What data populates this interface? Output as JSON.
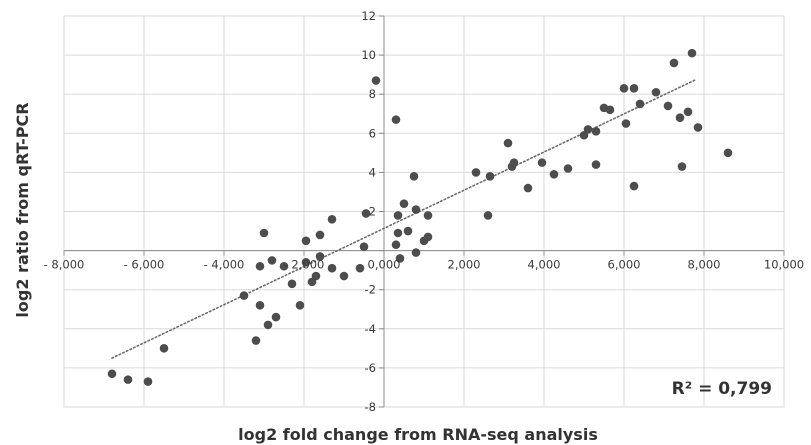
{
  "chart_data": {
    "type": "scatter",
    "xlabel": "log2 fold change from RNA-seq analysis",
    "ylabel": "log2 ratio from qRT-PCR",
    "xlim": [
      -8000,
      10000
    ],
    "ylim": [
      -8,
      12
    ],
    "x_ticks": [
      -8000,
      -6000,
      -4000,
      -2000,
      0,
      2000,
      4000,
      6000,
      8000,
      10000
    ],
    "x_tick_labels": [
      "- 8,000",
      "- 6,000",
      "- 4,000",
      "- 2,000",
      "0,000",
      "2,000",
      "4,000",
      "6,000",
      "8,000",
      "10,000"
    ],
    "y_ticks": [
      -8,
      -6,
      -4,
      -2,
      2,
      4,
      6,
      8,
      10,
      12
    ],
    "y_tick_labels": [
      "-8",
      "-6",
      "-4",
      "-2",
      "2",
      "4",
      "6",
      "8",
      "10",
      "12"
    ],
    "grid": true,
    "annotation": "R² = 0,799",
    "trendline": {
      "style": "dotted",
      "x": [
        -6800,
        7800
      ],
      "y": [
        -5.5,
        8.75
      ]
    },
    "points": [
      [
        -6800,
        -6.3
      ],
      [
        -6400,
        -6.6
      ],
      [
        -5900,
        -6.7
      ],
      [
        -5500,
        -5.0
      ],
      [
        -3500,
        -2.3
      ],
      [
        -3200,
        -4.6
      ],
      [
        -3100,
        -2.8
      ],
      [
        -3100,
        -0.8
      ],
      [
        -3000,
        0.9
      ],
      [
        -2900,
        -3.8
      ],
      [
        -2800,
        -0.5
      ],
      [
        -2700,
        -3.4
      ],
      [
        -2500,
        -0.8
      ],
      [
        -2300,
        -1.7
      ],
      [
        -2100,
        -2.8
      ],
      [
        -1950,
        0.5
      ],
      [
        -1950,
        -0.6
      ],
      [
        -1800,
        -1.6
      ],
      [
        -1700,
        -1.3
      ],
      [
        -1600,
        -0.3
      ],
      [
        -1600,
        0.8
      ],
      [
        -1300,
        -0.9
      ],
      [
        -1300,
        1.6
      ],
      [
        -1000,
        -1.3
      ],
      [
        -600,
        -0.9
      ],
      [
        -500,
        0.2
      ],
      [
        -450,
        1.9
      ],
      [
        -200,
        8.7
      ],
      [
        300,
        6.7
      ],
      [
        300,
        0.3
      ],
      [
        350,
        0.9
      ],
      [
        350,
        1.8
      ],
      [
        400,
        -0.4
      ],
      [
        500,
        2.4
      ],
      [
        600,
        1.0
      ],
      [
        750,
        3.8
      ],
      [
        800,
        -0.1
      ],
      [
        800,
        2.1
      ],
      [
        1000,
        0.5
      ],
      [
        1100,
        0.7
      ],
      [
        1100,
        1.8
      ],
      [
        2300,
        4.0
      ],
      [
        2600,
        1.8
      ],
      [
        2650,
        3.8
      ],
      [
        3100,
        5.5
      ],
      [
        3200,
        4.3
      ],
      [
        3250,
        4.5
      ],
      [
        3600,
        3.2
      ],
      [
        3950,
        4.5
      ],
      [
        4250,
        3.9
      ],
      [
        4600,
        4.2
      ],
      [
        5000,
        5.9
      ],
      [
        5100,
        6.2
      ],
      [
        5300,
        4.4
      ],
      [
        5300,
        6.1
      ],
      [
        5500,
        7.3
      ],
      [
        5650,
        7.2
      ],
      [
        6000,
        8.3
      ],
      [
        6050,
        6.5
      ],
      [
        6250,
        3.3
      ],
      [
        6250,
        8.3
      ],
      [
        6400,
        7.5
      ],
      [
        6800,
        8.1
      ],
      [
        7100,
        7.4
      ],
      [
        7250,
        9.6
      ],
      [
        7400,
        6.8
      ],
      [
        7450,
        4.3
      ],
      [
        7600,
        7.1
      ],
      [
        7700,
        10.1
      ],
      [
        7850,
        6.3
      ],
      [
        8600,
        5.0
      ]
    ]
  }
}
